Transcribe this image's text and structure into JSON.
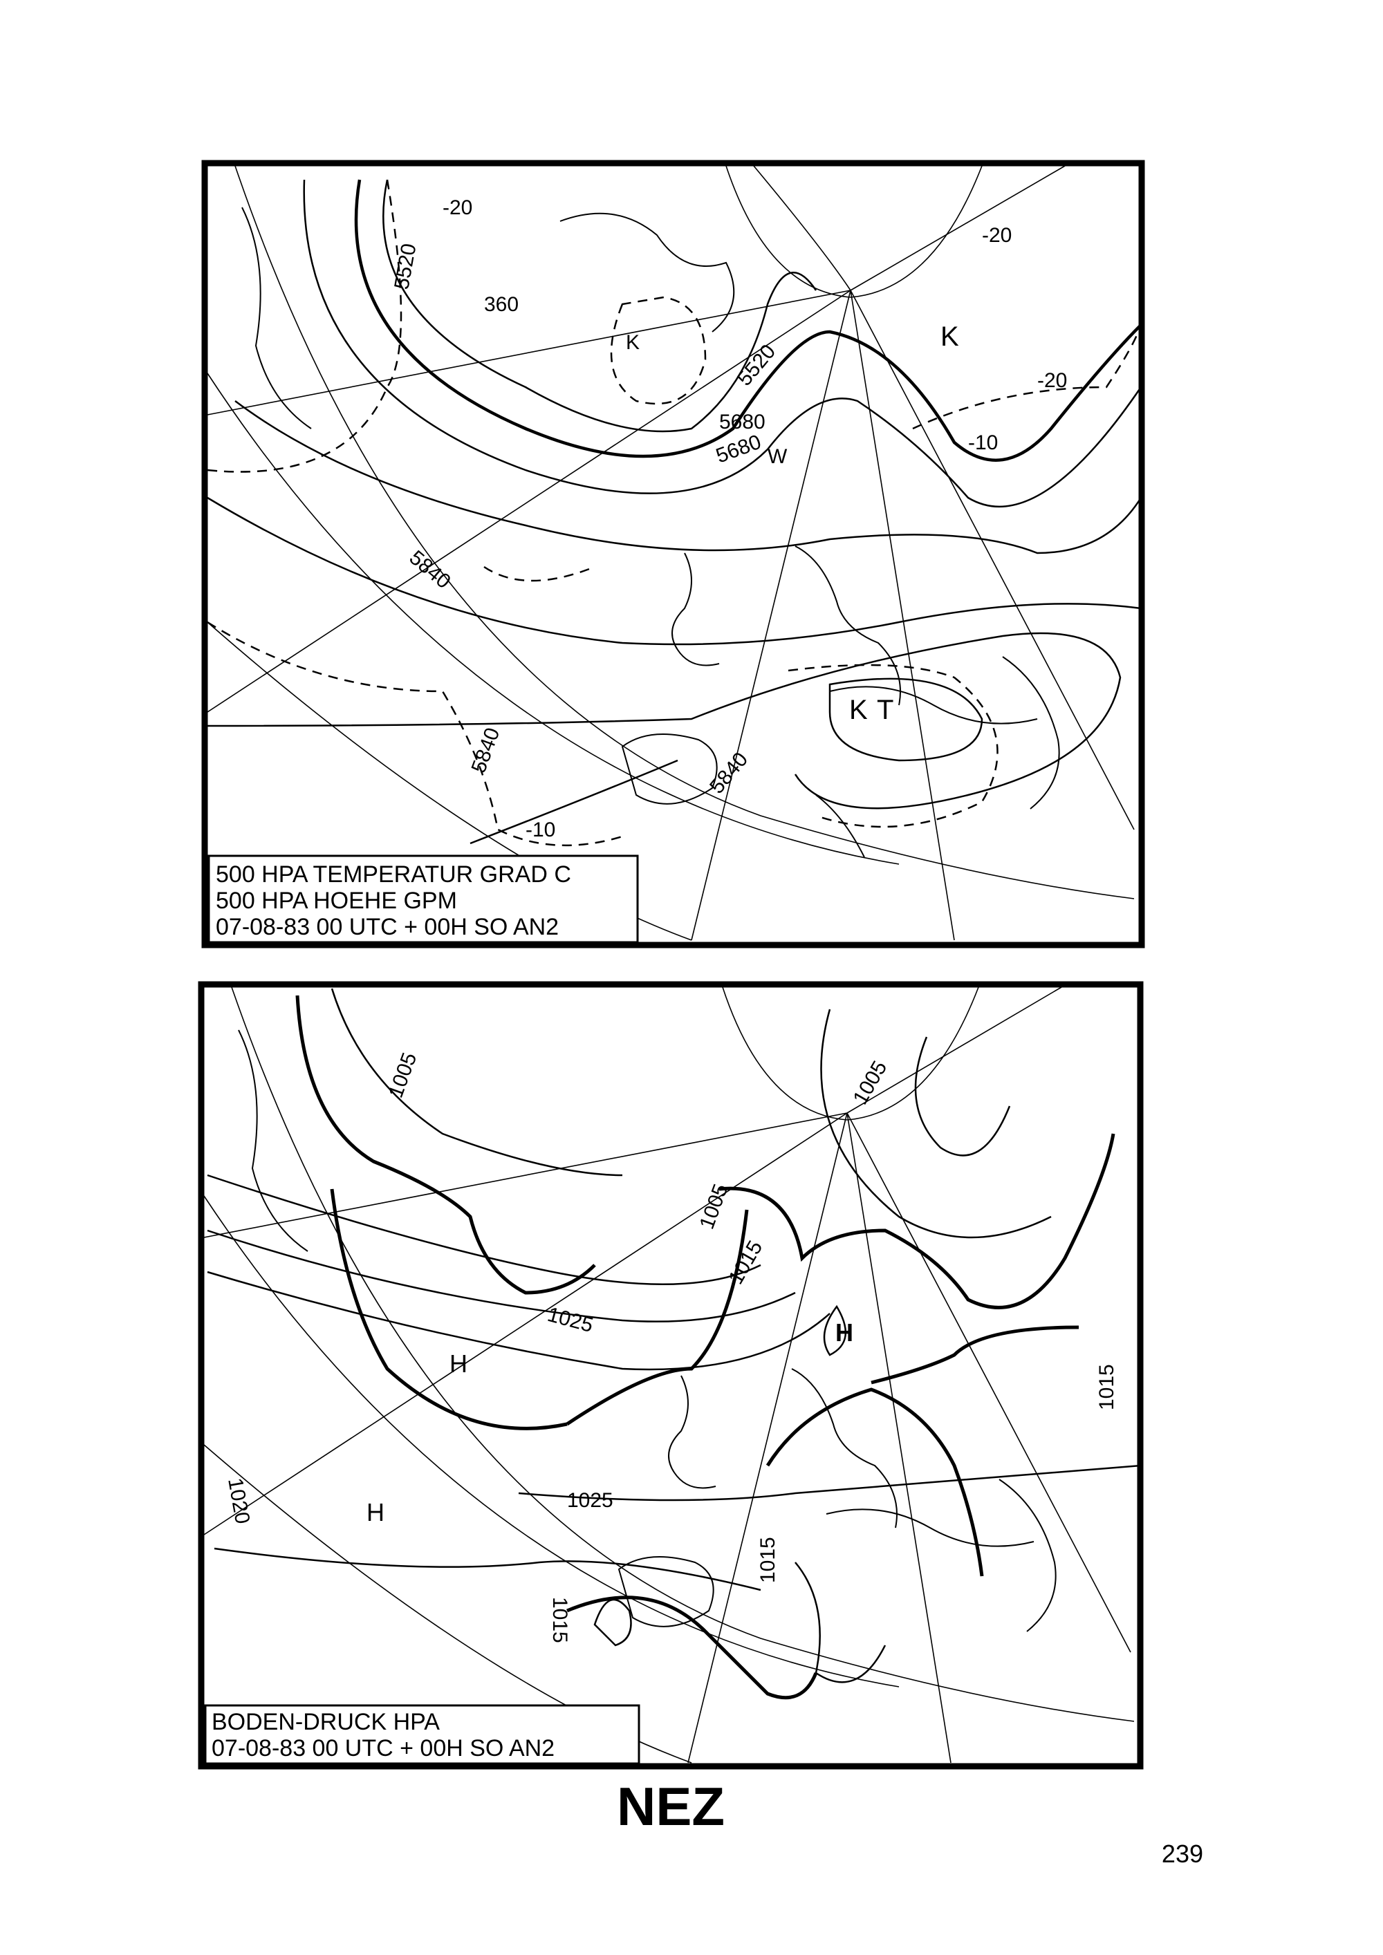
{
  "maps": [
    {
      "legend": [
        "500 HPA TEMPERATUR GRAD C",
        "500 HPA HOEHE GPM",
        "07-08-83 00 UTC + 00H SO AN2"
      ],
      "contour_labels": [
        "5520",
        "5680",
        "5840",
        "5520",
        "5680",
        "5840",
        "5840",
        "-20",
        "-20",
        "-10",
        "-10",
        "-20",
        "360"
      ],
      "centers": [
        "K",
        "K",
        "T",
        "W",
        "K"
      ]
    },
    {
      "legend": [
        "BODEN-DRUCK HPA",
        "07-08-83 00 UTC + 00H SO AN2"
      ],
      "contour_labels": [
        "1005",
        "1005",
        "1005",
        "1015",
        "1025",
        "1025",
        "1020",
        "1015",
        "1015",
        "1015"
      ],
      "centers": [
        "H",
        "H",
        "H"
      ]
    }
  ],
  "caption": "NEZ",
  "page_number": "239"
}
